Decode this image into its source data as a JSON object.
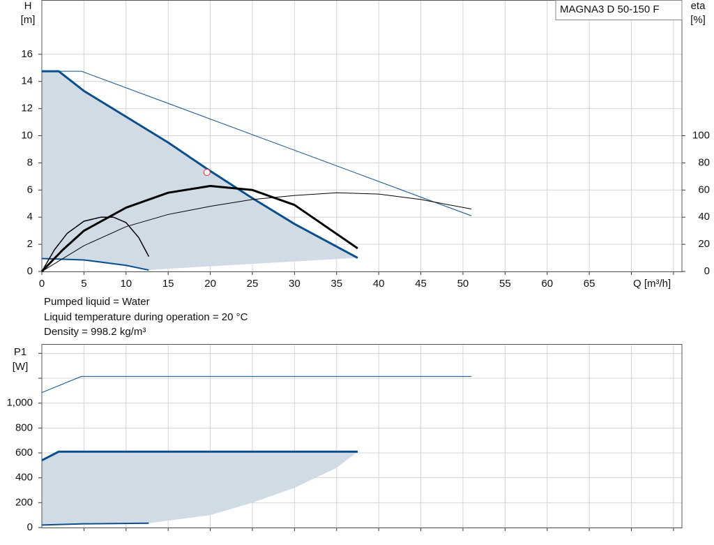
{
  "chart_data": [
    {
      "type": "line",
      "title": "MAGNA3 D 50-150 F",
      "ylabel": "H",
      "yunit": "[m]",
      "y2label": "eta",
      "y2unit": "[%]",
      "xlabel": "Q [m³/h]",
      "xlim": [
        0,
        76
      ],
      "xticks": [
        0,
        5,
        10,
        15,
        20,
        25,
        30,
        35,
        40,
        45,
        50,
        55,
        60,
        65
      ],
      "xgrid": [
        70,
        75
      ],
      "ylim": [
        0,
        20
      ],
      "yticks": [
        0,
        2,
        4,
        6,
        8,
        10,
        12,
        14,
        16
      ],
      "y2lim": [
        0,
        200
      ],
      "y2ticks": [
        0,
        20,
        40,
        60,
        80,
        100
      ],
      "grid": true,
      "notes": [
        "Pumped liquid = Water",
        "Liquid temperature during operation = 20 °C",
        "Density = 998.2 kg/m³"
      ],
      "series": [
        {
          "kind": "area",
          "color": "#d0dbe6",
          "x": [
            0,
            2,
            5,
            10,
            12.7,
            15,
            20,
            25,
            30,
            37.5
          ],
          "values": [
            14.75,
            14.75,
            13.3,
            11.4,
            10.4,
            9.5,
            7.4,
            5.4,
            3.5,
            1.0
          ],
          "lower": [
            0.95,
            0.93,
            0.85,
            0.45,
            0.1,
            0.2,
            0.38,
            0.56,
            0.74,
            1.0
          ]
        },
        {
          "kind": "line",
          "color": "#0b4e8c",
          "line_width": 1,
          "x": [
            0,
            4.7,
            51
          ],
          "values": [
            14.75,
            14.75,
            4.1
          ]
        },
        {
          "kind": "line",
          "color": "#0b4e8c",
          "line_width": 3,
          "x": [
            0,
            2,
            5,
            10,
            15,
            20,
            25,
            30,
            37.5
          ],
          "values": [
            14.75,
            14.75,
            13.3,
            11.4,
            9.5,
            7.4,
            5.4,
            3.5,
            1.0
          ]
        },
        {
          "kind": "line",
          "color": "#0b4e8c",
          "line_width": 2,
          "x": [
            0,
            5,
            10,
            12.7
          ],
          "values": [
            0.95,
            0.85,
            0.45,
            0.1
          ]
        },
        {
          "kind": "line",
          "axis": "y2",
          "color": "#000000",
          "line_width": 1,
          "x": [
            0,
            5,
            10,
            15,
            20,
            25,
            30,
            35,
            40,
            45,
            51
          ],
          "values": [
            0,
            19,
            33,
            42,
            48,
            53,
            56,
            58,
            57,
            53,
            46
          ]
        },
        {
          "kind": "line",
          "axis": "y2",
          "color": "#000000",
          "line_width": 3,
          "x": [
            0,
            2.5,
            5,
            10,
            15,
            20,
            25,
            30,
            37.5
          ],
          "values": [
            0,
            16,
            30,
            47,
            58,
            63,
            60,
            49,
            17
          ]
        },
        {
          "kind": "line",
          "axis": "y2",
          "color": "#000000",
          "line_width": 1.5,
          "x": [
            0,
            1.5,
            3,
            5,
            7,
            8.5,
            10,
            11.5,
            12.7
          ],
          "values": [
            0,
            16,
            28,
            37,
            40,
            40,
            36,
            25,
            11
          ]
        },
        {
          "kind": "marker",
          "color": "#e03030",
          "x": [
            19.6
          ],
          "values": [
            7.3
          ]
        }
      ]
    },
    {
      "type": "line",
      "ylabel": "P1",
      "yunit": "[W]",
      "xlim": [
        0,
        76
      ],
      "xgrid": [
        5,
        10,
        15,
        20,
        25,
        30,
        35,
        40,
        45,
        50,
        55,
        60,
        65,
        70,
        75
      ],
      "ylim": [
        0,
        1475
      ],
      "yticks": [
        0,
        200,
        400,
        600,
        800,
        {
          "value": 1000,
          "label": "1,000"
        }
      ],
      "ygrid": [
        1200,
        1400
      ],
      "grid": true,
      "series": [
        {
          "kind": "area",
          "color": "#d0dbe6",
          "x": [
            0,
            2,
            5,
            12.7,
            20,
            25,
            30,
            35,
            37.5
          ],
          "values": [
            540,
            610,
            610,
            610,
            610,
            610,
            610,
            610,
            610
          ],
          "lower": [
            20,
            25,
            30,
            35,
            100,
            200,
            320,
            480,
            610
          ]
        },
        {
          "kind": "line",
          "color": "#0b4e8c",
          "line_width": 1,
          "x": [
            0,
            4.7,
            51
          ],
          "values": [
            1085,
            1215,
            1215
          ]
        },
        {
          "kind": "line",
          "color": "#0b4e8c",
          "line_width": 3,
          "x": [
            0,
            2,
            37.5
          ],
          "values": [
            540,
            610,
            610
          ]
        },
        {
          "kind": "line",
          "color": "#0b4e8c",
          "line_width": 2,
          "x": [
            0,
            5,
            12.7
          ],
          "values": [
            20,
            30,
            35
          ]
        }
      ]
    }
  ]
}
